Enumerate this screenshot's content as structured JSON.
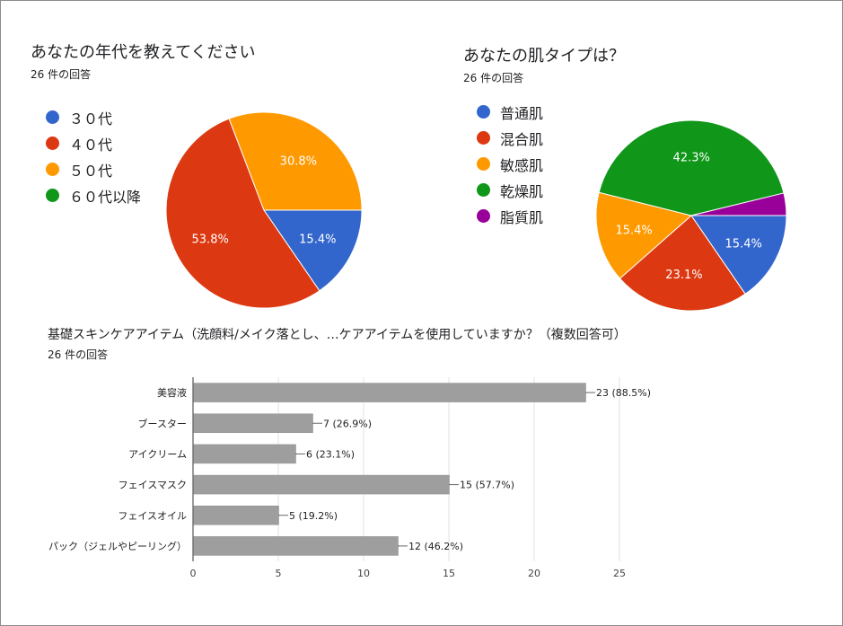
{
  "age_chart": {
    "title": "あなたの年代を教えてください",
    "responses": "26 件の回答"
  },
  "skin_chart": {
    "title": "あなたの肌タイプは？",
    "responses": "26 件の回答"
  },
  "items_chart": {
    "title": "基礎スキンケアアイテム（洗顔料/メイク落とし、…ケアアイテムを使用していますか？（複数回答可）",
    "responses": "26 件の回答"
  },
  "chart_data": [
    {
      "type": "pie",
      "title": "あなたの年代を教えてください",
      "categories": [
        "３０代",
        "４０代",
        "５０代",
        "６０代以降"
      ],
      "values": [
        15.4,
        53.8,
        30.8,
        0
      ],
      "labels": [
        "15.4%",
        "53.8%",
        "30.8%",
        ""
      ],
      "colors": [
        "#3366cc",
        "#dc3912",
        "#ff9900",
        "#109618"
      ],
      "legend": "left"
    },
    {
      "type": "pie",
      "title": "あなたの肌タイプは？",
      "categories": [
        "普通肌",
        "混合肌",
        "敏感肌",
        "乾燥肌",
        "脂質肌"
      ],
      "values": [
        15.4,
        23.1,
        15.4,
        42.3,
        3.8
      ],
      "labels": [
        "15.4%",
        "23.1%",
        "15.4%",
        "42.3%",
        ""
      ],
      "colors": [
        "#3366cc",
        "#dc3912",
        "#ff9900",
        "#109618",
        "#990099"
      ],
      "legend": "left"
    },
    {
      "type": "bar",
      "orientation": "horizontal",
      "title": "基礎スキンケアアイテム（洗顔料/メイク落とし、…ケアアイテムを使用していますか？（複数回答可）",
      "categories": [
        "美容液",
        "ブースター",
        "アイクリーム",
        "フェイスマスク",
        "フェイスオイル",
        "パック（ジェルやピーリング）"
      ],
      "values": [
        23,
        7,
        6,
        15,
        5,
        12
      ],
      "data_labels": [
        "23 (88.5%)",
        "7 (26.9%)",
        "6 (23.1%)",
        "15 (57.7%)",
        "5 (19.2%)",
        "12 (46.2%)"
      ],
      "xlim": [
        0,
        25
      ],
      "x_ticks": [
        "0",
        "5",
        "10",
        "15",
        "20",
        "25"
      ],
      "color": "#9e9e9e",
      "grid": true
    }
  ]
}
